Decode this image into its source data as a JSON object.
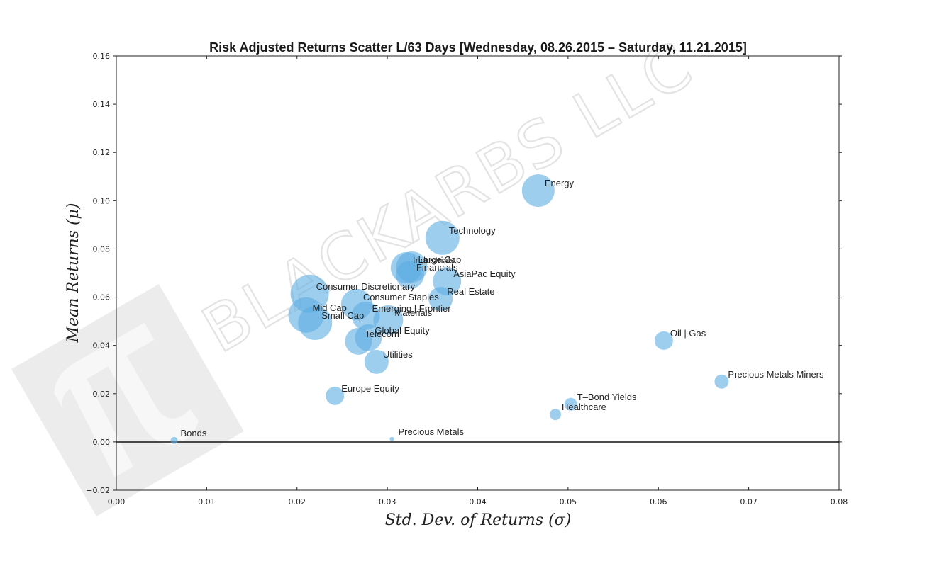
{
  "chart_data": {
    "type": "scatter",
    "title": "Risk Adjusted Returns Scatter L/63 Days [Wednesday, 08.26.2015 – Saturday, 11.21.2015]",
    "xlabel": "Std. Dev. of Returns  (σ)",
    "ylabel": "Mean Returns  (μ)",
    "xlim": [
      0.0,
      0.08
    ],
    "ylim": [
      -0.02,
      0.16
    ],
    "xticks": [
      "0.00",
      "0.01",
      "0.02",
      "0.03",
      "0.04",
      "0.05",
      "0.06",
      "0.07",
      "0.08"
    ],
    "yticks": [
      "−0.02",
      "0.00",
      "0.02",
      "0.04",
      "0.06",
      "0.08",
      "0.10",
      "0.12",
      "0.14",
      "0.16"
    ],
    "grid": false,
    "legend": null,
    "zero_line": true,
    "marker_color": "#5dade2",
    "watermark": "BLACKARBS LLC",
    "points": [
      {
        "label": "Bonds",
        "x": 0.0064,
        "y": 0.0006,
        "r": 5
      },
      {
        "label": "Precious Metals",
        "x": 0.0305,
        "y": 0.0012,
        "r": 3
      },
      {
        "label": "Europe Equity",
        "x": 0.0242,
        "y": 0.0191,
        "r": 13
      },
      {
        "label": "Healthcare",
        "x": 0.0486,
        "y": 0.0114,
        "r": 8
      },
      {
        "label": "T–Bond Yields",
        "x": 0.0503,
        "y": 0.0156,
        "r": 9
      },
      {
        "label": "Precious Metals Miners",
        "x": 0.067,
        "y": 0.025,
        "r": 10
      },
      {
        "label": "Oil | Gas",
        "x": 0.0606,
        "y": 0.042,
        "r": 13
      },
      {
        "label": "Energy",
        "x": 0.0467,
        "y": 0.1042,
        "r": 23
      },
      {
        "label": "Technology",
        "x": 0.0361,
        "y": 0.0846,
        "r": 24
      },
      {
        "label": "Industrials",
        "x": 0.0321,
        "y": 0.0722,
        "r": 22
      },
      {
        "label": "Large Cap",
        "x": 0.0327,
        "y": 0.0725,
        "r": 22
      },
      {
        "label": "Financials",
        "x": 0.0325,
        "y": 0.0693,
        "r": 20
      },
      {
        "label": "AsiaPac Equity",
        "x": 0.0366,
        "y": 0.0666,
        "r": 20
      },
      {
        "label": "Real Estate",
        "x": 0.0359,
        "y": 0.0593,
        "r": 17
      },
      {
        "label": "Consumer Discretionary",
        "x": 0.0214,
        "y": 0.0614,
        "r": 27
      },
      {
        "label": "Consumer Staples",
        "x": 0.0266,
        "y": 0.057,
        "r": 22
      },
      {
        "label": "Mid Cap",
        "x": 0.021,
        "y": 0.0526,
        "r": 25
      },
      {
        "label": "Small Cap",
        "x": 0.022,
        "y": 0.0493,
        "r": 24
      },
      {
        "label": "Emerging | Frontier",
        "x": 0.0276,
        "y": 0.0523,
        "r": 20
      },
      {
        "label": "Materials",
        "x": 0.0301,
        "y": 0.0505,
        "r": 21
      },
      {
        "label": "Global Equity",
        "x": 0.0279,
        "y": 0.0432,
        "r": 19
      },
      {
        "label": "Telecom",
        "x": 0.0268,
        "y": 0.0417,
        "r": 19
      },
      {
        "label": "Utilities",
        "x": 0.0288,
        "y": 0.0332,
        "r": 17
      }
    ]
  }
}
